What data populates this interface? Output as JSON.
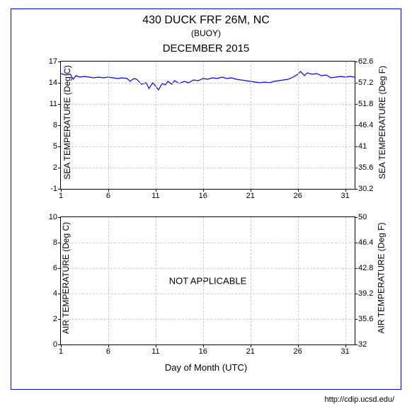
{
  "header": {
    "title": "430 DUCK FRF 26M, NC",
    "subtitle": "(BUOY)",
    "month": "DECEMBER 2015"
  },
  "xaxis": {
    "label": "Day of Month (UTC)",
    "min": 1,
    "max": 32,
    "ticks": [
      1,
      6,
      11,
      16,
      21,
      26,
      31
    ]
  },
  "top_chart": {
    "type": "line",
    "left_axis": {
      "label": "SEA TEMPERATURE (Deg C)",
      "min": -1,
      "max": 17,
      "ticks": [
        -1,
        2,
        5,
        8,
        11,
        14,
        17
      ]
    },
    "right_axis": {
      "label": "SEA TEMPERATURE (Deg F)",
      "ticks": [
        30.2,
        35.6,
        41,
        46.4,
        51.8,
        57.2,
        62.6
      ]
    },
    "line_color": "#0000ff",
    "line_width": 1.2,
    "series": [
      [
        1,
        15.3
      ],
      [
        1.5,
        15.1
      ],
      [
        2,
        15.2
      ],
      [
        2.3,
        14.5
      ],
      [
        2.6,
        15.0
      ],
      [
        3,
        14.8
      ],
      [
        3.5,
        14.9
      ],
      [
        4,
        14.8
      ],
      [
        4.5,
        14.7
      ],
      [
        5,
        14.8
      ],
      [
        5.5,
        14.7
      ],
      [
        6,
        14.8
      ],
      [
        6.5,
        14.7
      ],
      [
        7,
        14.6
      ],
      [
        7.5,
        14.7
      ],
      [
        8,
        14.6
      ],
      [
        8.3,
        14.2
      ],
      [
        8.7,
        14.6
      ],
      [
        9,
        14.5
      ],
      [
        9.5,
        13.8
      ],
      [
        10,
        14.0
      ],
      [
        10.3,
        13.2
      ],
      [
        10.7,
        14.0
      ],
      [
        11,
        13.5
      ],
      [
        11.3,
        13.0
      ],
      [
        11.7,
        13.9
      ],
      [
        12,
        13.7
      ],
      [
        12.3,
        14.2
      ],
      [
        12.7,
        13.8
      ],
      [
        13,
        14.3
      ],
      [
        13.5,
        13.9
      ],
      [
        14,
        14.2
      ],
      [
        14.5,
        14.0
      ],
      [
        15,
        14.4
      ],
      [
        15.5,
        14.3
      ],
      [
        16,
        14.6
      ],
      [
        16.5,
        14.5
      ],
      [
        17,
        14.7
      ],
      [
        17.5,
        14.6
      ],
      [
        18,
        14.8
      ],
      [
        18.5,
        14.6
      ],
      [
        19,
        14.7
      ],
      [
        19.5,
        14.5
      ],
      [
        20,
        14.4
      ],
      [
        20.5,
        14.3
      ],
      [
        21,
        14.2
      ],
      [
        21.5,
        14.1
      ],
      [
        22,
        14.0
      ],
      [
        22.5,
        14.1
      ],
      [
        23,
        14.0
      ],
      [
        23.5,
        14.2
      ],
      [
        24,
        14.3
      ],
      [
        24.5,
        14.4
      ],
      [
        25,
        14.5
      ],
      [
        25.5,
        14.8
      ],
      [
        26,
        15.2
      ],
      [
        26.3,
        15.6
      ],
      [
        26.7,
        15.0
      ],
      [
        27,
        15.4
      ],
      [
        27.5,
        15.2
      ],
      [
        28,
        15.3
      ],
      [
        28.5,
        15.0
      ],
      [
        29,
        15.1
      ],
      [
        29.5,
        14.7
      ],
      [
        30,
        14.8
      ],
      [
        30.5,
        14.9
      ],
      [
        31,
        14.8
      ],
      [
        31.5,
        14.9
      ],
      [
        32,
        14.8
      ]
    ]
  },
  "bottom_chart": {
    "type": "line",
    "left_axis": {
      "label": "AIR TEMPERATURE (Deg C)",
      "min": 0,
      "max": 10,
      "ticks": [
        0,
        2,
        4,
        6,
        8,
        10
      ]
    },
    "right_axis": {
      "label": "AIR TEMPERATURE (Deg F)",
      "ticks": [
        32,
        35.6,
        39.2,
        42.8,
        46.4,
        50
      ]
    },
    "overlay_text": "NOT APPLICABLE"
  },
  "grid_color": "#cccccc",
  "background_color": "#ffffff",
  "border_color": "#0000ff",
  "text_color": "#000000",
  "footer": {
    "url": "http://cdip.ucsd.edu/"
  }
}
